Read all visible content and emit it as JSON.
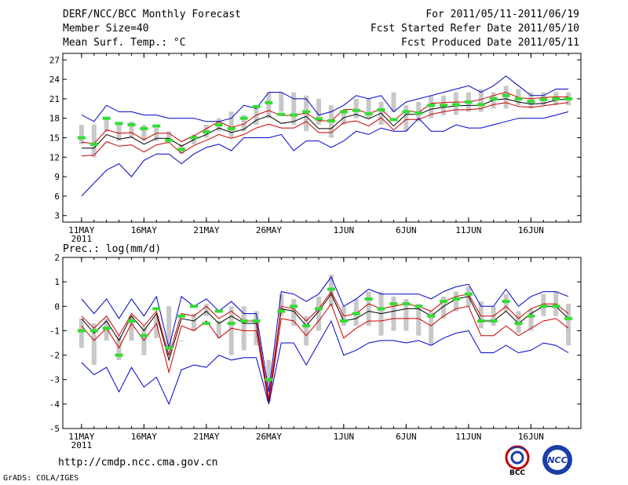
{
  "header": {
    "title": "DERF/NCC/BCC Monthly Forecast",
    "member_size": "Member Size=40",
    "variable": "Mean Surf. Temp.: °C",
    "period": "For 2011/05/11-2011/06/19",
    "started": "Fcst Started Refer Date 2011/05/10",
    "produced": "Fcst Produced Date 2011/05/11"
  },
  "footer": {
    "url": "http://cmdp.ncc.cma.gov.cn",
    "credit": "GrADS: COLA/IGES",
    "logo_left": "BCC",
    "logo_right": "NCC"
  },
  "colors": {
    "bar": "#c8c8c8",
    "mean": "#000000",
    "spread": "#cc0000",
    "envelope": "#0000cc",
    "obs": "#33dd33"
  },
  "chart_data": [
    {
      "type": "line",
      "title": "Mean Surf. Temp.: °C",
      "x_tick_labels": [
        "11MAY",
        "16MAY",
        "21MAY",
        "26MAY",
        "1JUN",
        "6JUN",
        "11JUN",
        "16JUN"
      ],
      "x_tick_days": [
        0,
        5,
        10,
        15,
        21,
        26,
        31,
        36
      ],
      "x_year_label": "2011",
      "xlim": [
        -1.5,
        40
      ],
      "ylim": [
        2,
        28
      ],
      "yticks": [
        3,
        6,
        9,
        12,
        15,
        18,
        21,
        24,
        27
      ],
      "bar_low": [
        14,
        12,
        16,
        14.5,
        15,
        14.5,
        14.5,
        14.5,
        12.5,
        14,
        15,
        16,
        15,
        16,
        17,
        18,
        19,
        17,
        16,
        17,
        15,
        17,
        18,
        18,
        17,
        19,
        16,
        17.5,
        18,
        18.5,
        18.5,
        19,
        19,
        19.5,
        19.5,
        20,
        19.5,
        20,
        20,
        20
      ],
      "bar_high": [
        17,
        17,
        18,
        17,
        17.5,
        17,
        16.5,
        16,
        14,
        15.5,
        17,
        18,
        19,
        18.5,
        20,
        22,
        22,
        22,
        21.5,
        21,
        20,
        19,
        21,
        21,
        20.5,
        22,
        20,
        20.5,
        21.5,
        21.5,
        22,
        22,
        22.5,
        22,
        23,
        22.5,
        22,
        22,
        22,
        22
      ],
      "series": [
        {
          "name": "mean",
          "values": [
            13.4,
            13.4,
            15.5,
            14.8,
            15.1,
            14,
            14.9,
            14.9,
            13.7,
            14.7,
            15.5,
            16.5,
            15.8,
            16.3,
            17.7,
            18.4,
            17.2,
            17.5,
            18.3,
            16.4,
            16.4,
            18.1,
            18.6,
            17.9,
            18.8,
            16.8,
            18.6,
            18.6,
            19.4,
            19.7,
            19.9,
            20,
            20,
            20.8,
            21,
            20.5,
            20.2,
            20.3,
            20.8,
            21
          ]
        },
        {
          "name": "upper",
          "values": [
            14.3,
            14.1,
            16.2,
            15.7,
            15.8,
            14.7,
            15.7,
            15.7,
            14.4,
            15.3,
            16.4,
            17.5,
            16.6,
            17.1,
            18.5,
            19.2,
            18.4,
            18.5,
            18.8,
            17.6,
            17.6,
            19.3,
            19.4,
            18.7,
            19.4,
            17.6,
            19.2,
            18.9,
            20.3,
            20.4,
            20.5,
            20.5,
            20.9,
            21.5,
            22,
            21.2,
            21,
            21.2,
            21.3,
            21.3
          ]
        },
        {
          "name": "lower",
          "values": [
            12.2,
            12.3,
            14.4,
            13.7,
            13.9,
            12.8,
            13.9,
            14.3,
            12.6,
            13.8,
            14.6,
            15.5,
            14.9,
            15.5,
            16.5,
            17.1,
            16.5,
            16.5,
            17.5,
            15.8,
            15.8,
            17.3,
            17.6,
            16.8,
            18.1,
            16.2,
            17.8,
            17.8,
            18.6,
            19,
            19.3,
            19.3,
            19.5,
            20.1,
            20.4,
            19.8,
            19.7,
            19.9,
            20.2,
            20.4
          ]
        },
        {
          "name": "envelope-max",
          "values": [
            18.5,
            17.5,
            20,
            19,
            19,
            18.5,
            18.5,
            18,
            18,
            18,
            17.5,
            17.5,
            18,
            20,
            19.5,
            22,
            22,
            21,
            21,
            18.5,
            19,
            20,
            21.5,
            21,
            21.5,
            19,
            20.5,
            21,
            21.5,
            22,
            22.5,
            23,
            22,
            23,
            24.5,
            23,
            21.5,
            21.5,
            22.5,
            22.5
          ]
        },
        {
          "name": "envelope-min",
          "values": [
            6,
            8,
            10,
            11,
            9,
            11.5,
            12.5,
            12.5,
            11,
            12.5,
            13.5,
            14,
            13,
            15,
            15,
            15,
            15.5,
            13,
            14.5,
            14.5,
            13.5,
            14.5,
            16,
            15.5,
            16.5,
            16,
            16,
            18,
            16,
            16,
            17,
            16.5,
            16.5,
            17,
            17.5,
            18,
            18,
            18,
            18.5,
            19
          ]
        },
        {
          "name": "obs",
          "values": [
            15,
            14,
            18,
            17.2,
            17,
            16.4,
            16.8,
            14.6,
            13.2,
            15,
            15.9,
            17,
            16.4,
            18,
            19.8,
            20.4,
            18.6,
            18.5,
            19,
            17.9,
            17.6,
            19,
            19.2,
            18.7,
            19.3,
            17.8,
            19,
            18.8,
            20,
            20,
            20.1,
            20.5,
            20.1,
            21,
            21.5,
            21,
            20.6,
            20.9,
            21,
            21
          ]
        }
      ]
    },
    {
      "type": "line",
      "title": "Prec.: log(mm/d)",
      "x_tick_labels": [
        "11MAY",
        "16MAY",
        "21MAY",
        "26MAY",
        "1JUN",
        "6JUN",
        "11JUN",
        "16JUN"
      ],
      "x_tick_days": [
        0,
        5,
        10,
        15,
        21,
        26,
        31,
        36
      ],
      "x_year_label": "2011",
      "xlim": [
        -1.5,
        40
      ],
      "ylim": [
        -5,
        2
      ],
      "yticks": [
        -5,
        -4,
        -3,
        -2,
        -1,
        0,
        1,
        2
      ],
      "bar_low": [
        -1.7,
        -2.4,
        -1.4,
        -2.2,
        -1.4,
        -2,
        -1.3,
        -2,
        -0.6,
        -1,
        -0.4,
        -1.3,
        -2,
        -1.8,
        -1.6,
        -3.9,
        -0.4,
        -0.8,
        -1.6,
        -1,
        0,
        -0.8,
        -0.8,
        -0.8,
        -1.2,
        -1,
        -1,
        -1.2,
        -1.6,
        -0.5,
        -0.2,
        0,
        -0.9,
        -0.8,
        -0.2,
        -1.1,
        -1,
        -0.4,
        -0.4,
        -1.6
      ],
      "bar_high": [
        -0.5,
        -0.7,
        -0.5,
        -1.2,
        -0.4,
        -0.8,
        -0.4,
        0,
        -1.4,
        -0.3,
        0.1,
        -0.6,
        0,
        0,
        -0.2,
        -2.2,
        0.5,
        0.3,
        -0.4,
        0.4,
        1.3,
        0,
        0.3,
        0.6,
        0.6,
        0.4,
        0.3,
        0.1,
        -0.2,
        0.4,
        0.6,
        0.8,
        0.2,
        0,
        0.5,
        -0.2,
        -0.1,
        0.5,
        0.6,
        0.1
      ],
      "series": [
        {
          "name": "mean",
          "values": [
            -0.5,
            -1.1,
            -0.6,
            -1.4,
            -0.4,
            -1,
            -0.3,
            -2.2,
            -0.5,
            -0.6,
            -0.2,
            -0.7,
            -0.4,
            -0.7,
            -0.7,
            -3.9,
            -0.1,
            -0.2,
            -0.8,
            -0.2,
            0.5,
            -0.6,
            -0.5,
            -0.2,
            -0.3,
            -0.2,
            -0.1,
            -0.1,
            -0.4,
            0,
            0.3,
            0.4,
            -0.6,
            -0.6,
            -0.2,
            -0.7,
            -0.3,
            0,
            0,
            -0.5
          ]
        },
        {
          "name": "upper",
          "values": [
            -0.4,
            -0.9,
            -0.4,
            -1.2,
            -0.3,
            -0.8,
            -0.2,
            -2,
            -0.3,
            -0.4,
            0,
            -0.5,
            -0.2,
            -0.6,
            -0.6,
            -3.8,
            0,
            -0.1,
            -0.6,
            -0.1,
            0.6,
            -0.4,
            -0.3,
            0.1,
            -0.1,
            0,
            0.1,
            0,
            -0.2,
            0.2,
            0.4,
            0.5,
            -0.4,
            -0.4,
            0,
            -0.5,
            -0.1,
            0.1,
            0.1,
            -0.3
          ]
        },
        {
          "name": "lower",
          "values": [
            -0.8,
            -1.4,
            -0.9,
            -1.7,
            -0.7,
            -1.4,
            -0.7,
            -2.7,
            -0.8,
            -1,
            -0.6,
            -1.3,
            -0.9,
            -1,
            -1,
            -4,
            -0.5,
            -0.6,
            -1.2,
            -0.6,
            0.1,
            -1.3,
            -0.9,
            -0.6,
            -0.6,
            -0.5,
            -0.5,
            -0.5,
            -0.8,
            -0.4,
            -0.1,
            0,
            -1.2,
            -1.2,
            -0.8,
            -1.2,
            -0.9,
            -0.6,
            -0.5,
            -0.9
          ]
        },
        {
          "name": "envelope-max",
          "values": [
            0.3,
            -0.3,
            0.3,
            -0.5,
            0.3,
            -0.4,
            0.4,
            -1.7,
            0.4,
            0,
            0.3,
            -0.2,
            0.2,
            -0.3,
            -0.3,
            -3.5,
            0.6,
            0.5,
            0.2,
            0.5,
            1.2,
            0,
            0.3,
            0.7,
            0.5,
            0.5,
            0.5,
            0.5,
            0.3,
            0.6,
            0.8,
            0.9,
            0,
            0,
            0.7,
            0,
            0.4,
            0.6,
            0.6,
            0.4
          ]
        },
        {
          "name": "envelope-min",
          "values": [
            -2.3,
            -2.8,
            -2.5,
            -3.5,
            -2.5,
            -3.3,
            -2.9,
            -4,
            -2.6,
            -2.4,
            -2.5,
            -2,
            -2.2,
            -2.1,
            -2.1,
            -4,
            -1.5,
            -1.5,
            -2.4,
            -1.5,
            -0.6,
            -2,
            -1.8,
            -1.5,
            -1.4,
            -1.4,
            -1.5,
            -1.4,
            -1.6,
            -1.3,
            -1.1,
            -1,
            -1.9,
            -1.9,
            -1.6,
            -1.9,
            -1.8,
            -1.5,
            -1.6,
            -1.9
          ]
        },
        {
          "name": "obs",
          "values": [
            -1,
            -1,
            -0.9,
            -2,
            -0.6,
            -1.2,
            -0.1,
            -1.7,
            -0.4,
            0,
            -0.7,
            -0.2,
            -0.7,
            -0.6,
            -0.6,
            -3,
            -0.2,
            0,
            -0.8,
            -0.1,
            0.7,
            -0.6,
            -0.3,
            0.3,
            -0.1,
            0.1,
            0.1,
            0,
            -0.4,
            0.2,
            0.3,
            0.5,
            -0.6,
            -0.6,
            0.2,
            -0.7,
            -0.4,
            0,
            0,
            -0.5
          ]
        }
      ]
    }
  ]
}
